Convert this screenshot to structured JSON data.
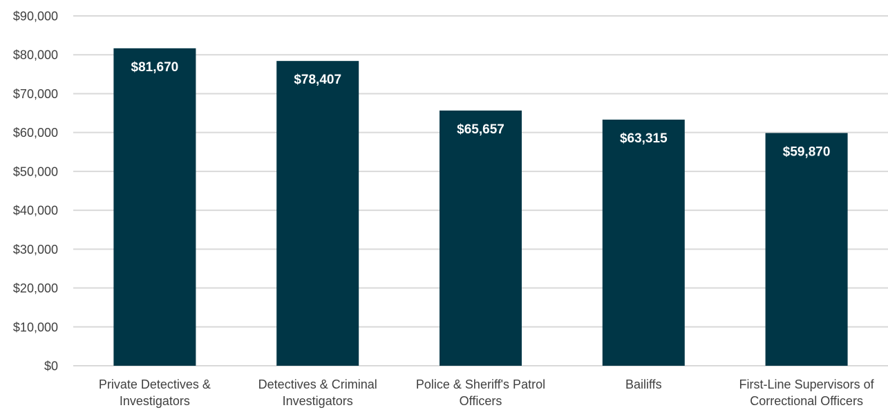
{
  "chart_data": {
    "type": "bar",
    "title": "",
    "xlabel": "",
    "ylabel": "",
    "categories": [
      [
        "Private Detectives &",
        "Investigators"
      ],
      [
        "Detectives & Criminal",
        "Investigators"
      ],
      [
        "Police & Sheriff's Patrol",
        "Officers"
      ],
      [
        "Bailiffs"
      ],
      [
        "First-Line Supervisors of",
        "Correctional Officers"
      ]
    ],
    "values": [
      81670,
      78407,
      65657,
      63315,
      59870
    ],
    "data_labels": [
      "$81,670",
      "$78,407",
      "$65,657",
      "$63,315",
      "$59,870"
    ],
    "yticks": [
      0,
      10000,
      20000,
      30000,
      40000,
      50000,
      60000,
      70000,
      80000,
      90000
    ],
    "ytick_labels": [
      "$0",
      "$10,000",
      "$20,000",
      "$30,000",
      "$40,000",
      "$50,000",
      "$60,000",
      "$70,000",
      "$80,000",
      "$90,000"
    ],
    "ylim": [
      0,
      90000
    ],
    "grid": true,
    "legend": "none",
    "colors": {
      "bar": "#003646",
      "grid": "#d9d9d9",
      "tick_text": "#404040",
      "data_label_text": "#ffffff"
    }
  }
}
